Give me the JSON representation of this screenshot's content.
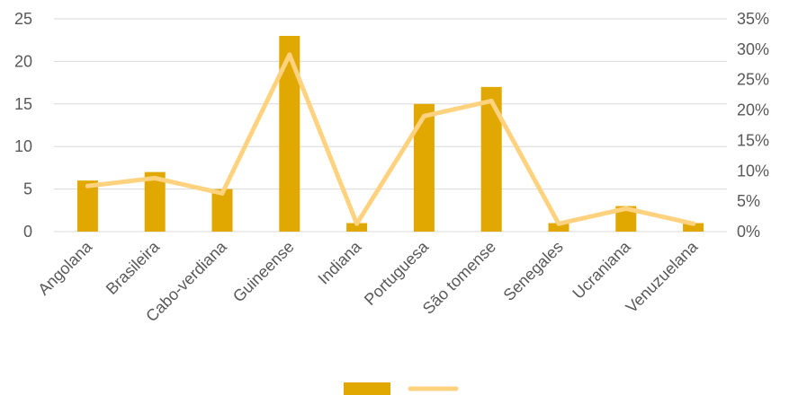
{
  "chart_data": {
    "type": "bar",
    "categories": [
      "Angolana",
      "Brasileira",
      "Cabo-verdiana",
      "Guineense",
      "Indiana",
      "Portuguesa",
      "São tomense",
      "Senegales",
      "Ucraniana",
      "Venuzuelana"
    ],
    "series": [
      {
        "type": "bar",
        "axis": "left",
        "color": "#E0A800",
        "values": [
          6,
          7,
          5,
          23,
          1,
          15,
          17,
          1,
          3,
          1
        ]
      },
      {
        "type": "line",
        "axis": "right",
        "color": "#FFD27F",
        "values": [
          7.5,
          8.8,
          6.3,
          29.1,
          1.3,
          19.0,
          21.5,
          1.3,
          3.8,
          1.3
        ]
      }
    ],
    "y_left": {
      "min": 0,
      "max": 25,
      "step": 5,
      "ticks": [
        "0",
        "5",
        "10",
        "15",
        "20",
        "25"
      ]
    },
    "y_right": {
      "min": 0,
      "max": 35,
      "step": 5,
      "ticks": [
        "0%",
        "5%",
        "10%",
        "15%",
        "20%",
        "25%",
        "30%",
        "35%"
      ]
    },
    "grid": true,
    "legend": "bottom"
  }
}
